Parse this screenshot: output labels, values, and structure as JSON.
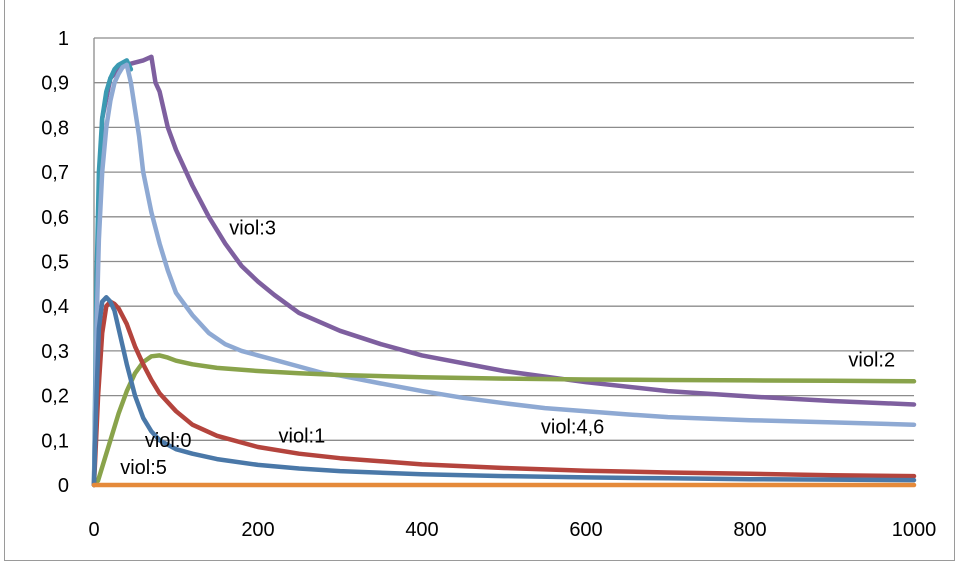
{
  "chart_data": {
    "type": "line",
    "xlim": [
      0,
      1000
    ],
    "ylim": [
      0,
      1
    ],
    "x_ticks": [
      "0",
      "200",
      "400",
      "600",
      "800",
      "1000"
    ],
    "y_ticks": [
      "0",
      "0,1",
      "0,2",
      "0,3",
      "0,4",
      "0,5",
      "0,6",
      "0,7",
      "0,8",
      "0,9",
      "1"
    ],
    "grid": "horizontal",
    "legend": "none",
    "annotations": [
      {
        "text": "viol:3",
        "x": 165,
        "y": 0.56
      },
      {
        "text": "viol:2",
        "x": 920,
        "y": 0.265
      },
      {
        "text": "viol:4,6",
        "x": 545,
        "y": 0.115
      },
      {
        "text": "viol:1",
        "x": 225,
        "y": 0.095
      },
      {
        "text": "viol:0",
        "x": 62,
        "y": 0.085
      },
      {
        "text": "viol:5",
        "x": 32,
        "y": 0.025
      }
    ],
    "series": [
      {
        "color": "#7E5F9F",
        "x": [
          0,
          5,
          10,
          20,
          30,
          40,
          50,
          60,
          70,
          75,
          80,
          90,
          100,
          120,
          140,
          160,
          180,
          200,
          220,
          250,
          300,
          350,
          400,
          500,
          600,
          700,
          800,
          900,
          1000
        ],
        "y": [
          0,
          0.55,
          0.82,
          0.91,
          0.93,
          0.94,
          0.945,
          0.95,
          0.958,
          0.9,
          0.88,
          0.8,
          0.75,
          0.67,
          0.6,
          0.54,
          0.49,
          0.455,
          0.425,
          0.385,
          0.345,
          0.315,
          0.29,
          0.255,
          0.23,
          0.21,
          0.198,
          0.188,
          0.18
        ]
      },
      {
        "color": "#3B9AB2",
        "x": [
          0,
          3,
          6,
          10,
          15,
          20,
          25,
          30,
          35,
          40,
          45
        ],
        "y": [
          0,
          0.45,
          0.7,
          0.82,
          0.88,
          0.91,
          0.93,
          0.94,
          0.945,
          0.95,
          0.93
        ]
      },
      {
        "color": "#8EA9D3",
        "x": [
          0,
          3,
          6,
          10,
          15,
          20,
          25,
          30,
          35,
          40,
          45,
          50,
          55,
          60,
          70,
          80,
          90,
          100,
          120,
          140,
          160,
          180,
          200,
          220,
          250,
          280,
          300,
          350,
          400,
          450,
          500,
          550,
          600,
          650,
          700,
          800,
          900,
          1000
        ],
        "y": [
          0,
          0.35,
          0.55,
          0.7,
          0.8,
          0.86,
          0.9,
          0.92,
          0.935,
          0.94,
          0.9,
          0.84,
          0.78,
          0.7,
          0.61,
          0.54,
          0.48,
          0.43,
          0.38,
          0.34,
          0.315,
          0.3,
          0.29,
          0.28,
          0.265,
          0.25,
          0.245,
          0.227,
          0.21,
          0.195,
          0.183,
          0.172,
          0.165,
          0.158,
          0.152,
          0.145,
          0.14,
          0.135
        ]
      },
      {
        "color": "#89A34B",
        "x": [
          0,
          5,
          10,
          20,
          30,
          40,
          50,
          60,
          70,
          80,
          90,
          100,
          120,
          150,
          200,
          250,
          300,
          400,
          500,
          600,
          700,
          800,
          900,
          1000
        ],
        "y": [
          0,
          0.01,
          0.04,
          0.1,
          0.16,
          0.21,
          0.25,
          0.275,
          0.288,
          0.29,
          0.285,
          0.278,
          0.27,
          0.262,
          0.255,
          0.25,
          0.246,
          0.241,
          0.238,
          0.236,
          0.235,
          0.234,
          0.233,
          0.232
        ]
      },
      {
        "color": "#B4443D",
        "x": [
          0,
          5,
          10,
          15,
          20,
          25,
          30,
          40,
          50,
          60,
          70,
          80,
          100,
          120,
          150,
          200,
          250,
          300,
          400,
          500,
          600,
          700,
          800,
          900,
          1000
        ],
        "y": [
          0,
          0.2,
          0.34,
          0.4,
          0.41,
          0.405,
          0.395,
          0.36,
          0.31,
          0.27,
          0.235,
          0.205,
          0.165,
          0.135,
          0.11,
          0.085,
          0.07,
          0.06,
          0.046,
          0.038,
          0.032,
          0.028,
          0.025,
          0.022,
          0.02
        ]
      },
      {
        "color": "#4A78A8",
        "x": [
          0,
          3,
          6,
          10,
          15,
          20,
          25,
          30,
          35,
          40,
          50,
          60,
          70,
          80,
          100,
          120,
          150,
          200,
          250,
          300,
          400,
          500,
          600,
          700,
          800,
          900,
          1000
        ],
        "y": [
          0,
          0.2,
          0.35,
          0.41,
          0.42,
          0.41,
          0.39,
          0.35,
          0.31,
          0.27,
          0.2,
          0.15,
          0.12,
          0.1,
          0.08,
          0.07,
          0.058,
          0.045,
          0.037,
          0.031,
          0.024,
          0.02,
          0.017,
          0.015,
          0.013,
          0.012,
          0.011
        ]
      },
      {
        "color": "#E58A3A",
        "x": [
          0,
          1000
        ],
        "y": [
          0,
          0
        ]
      }
    ]
  }
}
